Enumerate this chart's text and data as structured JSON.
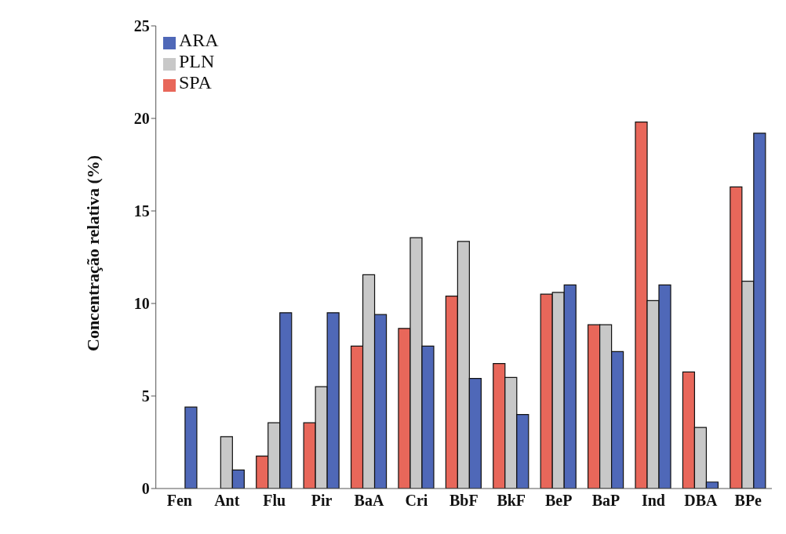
{
  "chart_data": {
    "type": "bar",
    "ylabel": "Concentração relativa (%)",
    "categories": [
      "Fen",
      "Ant",
      "Flu",
      "Pir",
      "BaA",
      "Cri",
      "BbF",
      "BkF",
      "BeP",
      "BaP",
      "Ind",
      "DBA",
      "BPe"
    ],
    "series": [
      {
        "name": "SPA",
        "color": "#e8675a",
        "values": [
          0,
          0,
          1.75,
          3.55,
          7.7,
          8.65,
          10.4,
          6.75,
          10.5,
          8.85,
          19.8,
          6.3,
          16.3
        ]
      },
      {
        "name": "PLN",
        "color": "#c8c8c8",
        "values": [
          0,
          2.8,
          3.55,
          5.5,
          11.55,
          13.55,
          13.35,
          6.0,
          10.6,
          8.85,
          10.15,
          3.3,
          11.2
        ]
      },
      {
        "name": "ARA",
        "color": "#4f68b8",
        "values": [
          4.4,
          1.0,
          9.5,
          9.5,
          9.4,
          7.7,
          5.95,
          4.0,
          11.0,
          7.4,
          11.0,
          0.35,
          19.2
        ]
      }
    ],
    "ylim": [
      0,
      25
    ],
    "yticks": [
      0,
      5,
      10,
      15,
      20,
      25
    ],
    "grid": false,
    "legend": "top left"
  }
}
